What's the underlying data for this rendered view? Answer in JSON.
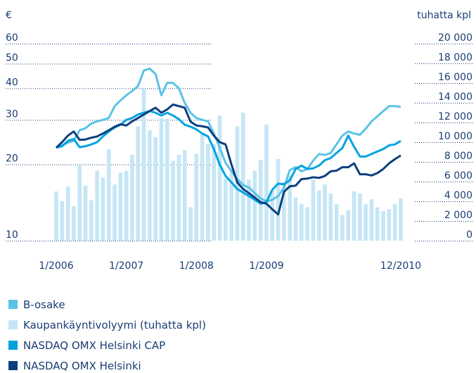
{
  "chart_data": {
    "type": "bar-line",
    "y_label": "€",
    "y2_label": "tuhatta kpl",
    "yscale": "log",
    "ylim": [
      10,
      60
    ],
    "yticks": [
      10,
      20,
      30,
      40,
      50,
      60
    ],
    "y2lim": [
      0,
      20000
    ],
    "y2ticks": [
      0,
      {
        "value": 2000,
        "label": "2 000"
      },
      {
        "value": 4000,
        "label": "4 000"
      },
      {
        "value": 6000,
        "label": "6 000"
      },
      {
        "value": 8000,
        "label": "8 000"
      },
      {
        "value": 10000,
        "label": "10 000"
      },
      {
        "value": 12000,
        "label": "12 000"
      },
      {
        "value": 14000,
        "label": "14 000"
      },
      {
        "value": 16000,
        "label": "16 000"
      },
      {
        "value": 18000,
        "label": "18 000"
      },
      {
        "value": 20000,
        "label": "20 000"
      }
    ],
    "grid": true,
    "categories": [
      "1/2006",
      null,
      null,
      null,
      null,
      null,
      null,
      null,
      null,
      null,
      null,
      null,
      "1/2007",
      null,
      null,
      null,
      null,
      null,
      null,
      null,
      null,
      null,
      null,
      null,
      "1/2008",
      null,
      null,
      null,
      null,
      null,
      null,
      null,
      null,
      null,
      null,
      null,
      "1/2009",
      null,
      null,
      null,
      null,
      null,
      null,
      null,
      null,
      null,
      null,
      null,
      null,
      null,
      null,
      null,
      null,
      null,
      null,
      null,
      null,
      null,
      null,
      "12/2010"
    ],
    "series": [
      {
        "name": "B-osake",
        "color": "#5bc2e7",
        "kind": "line",
        "values": [
          23.3,
          23.8,
          24.4,
          24.8,
          27.3,
          27.8,
          29,
          29.6,
          30,
          30.5,
          34,
          35.8,
          37.5,
          39,
          40.8,
          47,
          47.8,
          45.5,
          37.5,
          42,
          42,
          40,
          35,
          32,
          30.5,
          30,
          29.6,
          26.5,
          23.3,
          20.3,
          18.8,
          17.5,
          16.6,
          16.2,
          15.4,
          14.7,
          14.3,
          14.5,
          15,
          16.2,
          19,
          19.5,
          18.8,
          19.2,
          20.7,
          22,
          21.8,
          22.2,
          24,
          26,
          27,
          26.5,
          26.2,
          27.7,
          29.6,
          31,
          32.5,
          34,
          34,
          33.8
        ]
      },
      {
        "name": "Kaupankäyntivolyymi (tuhatta kpl)",
        "color": "#c5e6f5",
        "kind": "bar",
        "axis": "y2",
        "values": [
          5000,
          4000,
          5500,
          3500,
          7700,
          5600,
          4100,
          7100,
          6400,
          9300,
          5700,
          6900,
          7100,
          8700,
          11600,
          15400,
          11200,
          10500,
          12400,
          12400,
          8100,
          8700,
          9200,
          3400,
          8800,
          10800,
          9800,
          9800,
          12700,
          6300,
          6900,
          11600,
          13000,
          6200,
          7100,
          8200,
          11800,
          5100,
          8300,
          5900,
          6600,
          4400,
          3700,
          3400,
          6200,
          5100,
          5700,
          4800,
          3700,
          2600,
          3100,
          5000,
          4800,
          3700,
          4200,
          3400,
          3000,
          3200,
          3700,
          4300
        ]
      },
      {
        "name": "NASDAQ OMX Helsinki CAP",
        "color": "#00a3e0",
        "kind": "line",
        "values": [
          23.3,
          23.6,
          24.8,
          25.2,
          23.4,
          23.6,
          24,
          24.5,
          25.8,
          27,
          28,
          28.7,
          30,
          30.5,
          31.5,
          32,
          32.5,
          32,
          31.2,
          32,
          31.2,
          30.2,
          28.7,
          28.2,
          27.5,
          26.5,
          25.8,
          23,
          20,
          18,
          17,
          16,
          15.5,
          15,
          14.5,
          14,
          14.2,
          15.9,
          16.8,
          16.7,
          17.3,
          19.2,
          19.8,
          19.2,
          19.3,
          19.8,
          20.8,
          21.2,
          22.2,
          23.2,
          26,
          23.5,
          21.5,
          21.5,
          22,
          22.5,
          23,
          23.8,
          24,
          24.8
        ]
      },
      {
        "name": "NASDAQ OMX Helsinki",
        "color": "#0d3f7e",
        "kind": "line",
        "values": [
          23.3,
          24.5,
          26,
          27,
          25,
          25.1,
          25.5,
          25.8,
          26.5,
          27.3,
          28.2,
          28.8,
          28.5,
          29.6,
          30.5,
          31.5,
          32.5,
          33.5,
          32,
          33,
          34.5,
          34,
          33.5,
          29.5,
          28.5,
          28.3,
          28,
          26,
          24.5,
          24,
          20,
          17,
          16,
          15.4,
          14.8,
          14.2,
          14,
          13.3,
          12.7,
          15.6,
          16.4,
          16.5,
          17.5,
          17.6,
          17.8,
          17.7,
          18,
          18.8,
          18.9,
          19.5,
          19.5,
          20.2,
          18.3,
          18.3,
          18.1,
          18.5,
          19.2,
          20.2,
          21,
          21.7
        ]
      }
    ]
  }
}
